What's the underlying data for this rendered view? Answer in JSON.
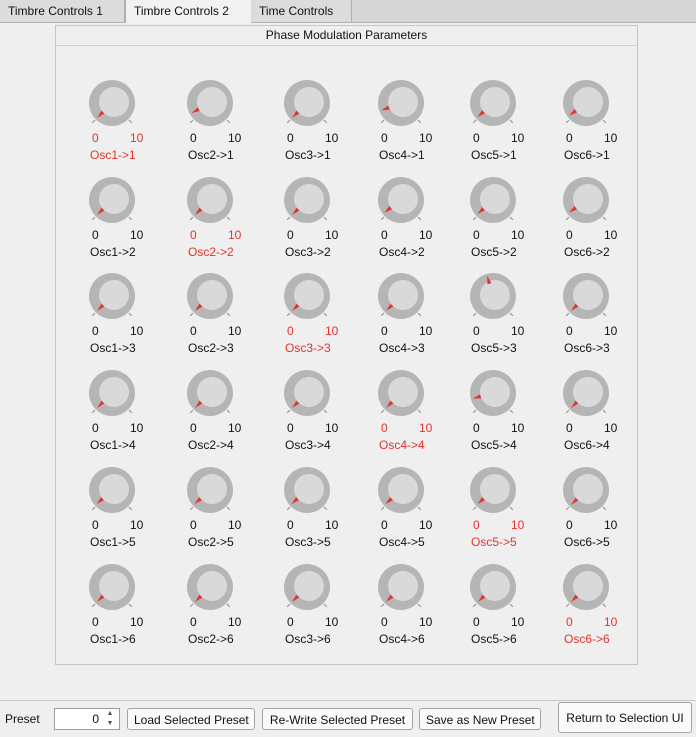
{
  "tabs": [
    {
      "label": "Timbre Controls 1",
      "active": false
    },
    {
      "label": "Timbre Controls 2",
      "active": true
    },
    {
      "label": "Time Controls",
      "active": false
    }
  ],
  "panel": {
    "title": "Phase Modulation Parameters"
  },
  "knob_range": {
    "min": "0",
    "max": "10"
  },
  "knob_colors": {
    "normal_label": "#111111",
    "active_label": "#e5322b",
    "pointer": "#e5322b"
  },
  "knobs": [
    [
      {
        "label": "Osc1->1",
        "value": 0.0,
        "active": true
      },
      {
        "label": "Osc2->1",
        "value": 0.6,
        "active": false
      },
      {
        "label": "Osc3->1",
        "value": 0.0,
        "active": false
      },
      {
        "label": "Osc4->1",
        "value": 0.9,
        "active": false
      },
      {
        "label": "Osc5->1",
        "value": 0.1,
        "active": false
      },
      {
        "label": "Osc6->1",
        "value": 0.3,
        "active": false
      }
    ],
    [
      {
        "label": "Osc1->2",
        "value": 0.0,
        "active": false
      },
      {
        "label": "Osc2->2",
        "value": 0.0,
        "active": true
      },
      {
        "label": "Osc3->2",
        "value": 0.0,
        "active": false
      },
      {
        "label": "Osc4->2",
        "value": 0.3,
        "active": false
      },
      {
        "label": "Osc5->2",
        "value": 0.1,
        "active": false
      },
      {
        "label": "Osc6->2",
        "value": 0.3,
        "active": false
      }
    ],
    [
      {
        "label": "Osc1->3",
        "value": 0.0,
        "active": false
      },
      {
        "label": "Osc2->3",
        "value": 0.0,
        "active": false
      },
      {
        "label": "Osc3->3",
        "value": 0.0,
        "active": true
      },
      {
        "label": "Osc4->3",
        "value": 0.0,
        "active": false
      },
      {
        "label": "Osc5->3",
        "value": 4.4,
        "active": false
      },
      {
        "label": "Osc6->3",
        "value": 0.0,
        "active": false
      }
    ],
    [
      {
        "label": "Osc1->4",
        "value": 0.0,
        "active": false
      },
      {
        "label": "Osc2->4",
        "value": 0.0,
        "active": false
      },
      {
        "label": "Osc3->4",
        "value": 0.0,
        "active": false
      },
      {
        "label": "Osc4->4",
        "value": 0.0,
        "active": true
      },
      {
        "label": "Osc5->4",
        "value": 1.1,
        "active": false
      },
      {
        "label": "Osc6->4",
        "value": 0.0,
        "active": false
      }
    ],
    [
      {
        "label": "Osc1->5",
        "value": 0.1,
        "active": false
      },
      {
        "label": "Osc2->5",
        "value": 0.1,
        "active": false
      },
      {
        "label": "Osc3->5",
        "value": 0.1,
        "active": false
      },
      {
        "label": "Osc4->5",
        "value": 0.1,
        "active": false
      },
      {
        "label": "Osc5->5",
        "value": 0.1,
        "active": true
      },
      {
        "label": "Osc6->5",
        "value": 0.0,
        "active": false
      }
    ],
    [
      {
        "label": "Osc1->6",
        "value": 0.0,
        "active": false
      },
      {
        "label": "Osc2->6",
        "value": 0.0,
        "active": false
      },
      {
        "label": "Osc3->6",
        "value": 0.0,
        "active": false
      },
      {
        "label": "Osc4->6",
        "value": 0.0,
        "active": false
      },
      {
        "label": "Osc5->6",
        "value": 0.0,
        "active": false
      },
      {
        "label": "Osc6->6",
        "value": 0.0,
        "active": true
      }
    ]
  ],
  "bottom": {
    "preset_label": "Preset",
    "preset_value": "0",
    "load_button": "Load Selected Preset",
    "rewrite_button": "Re-Write Selected Preset",
    "save_button": "Save as New Preset",
    "return_button": "Return to Selection UI"
  }
}
